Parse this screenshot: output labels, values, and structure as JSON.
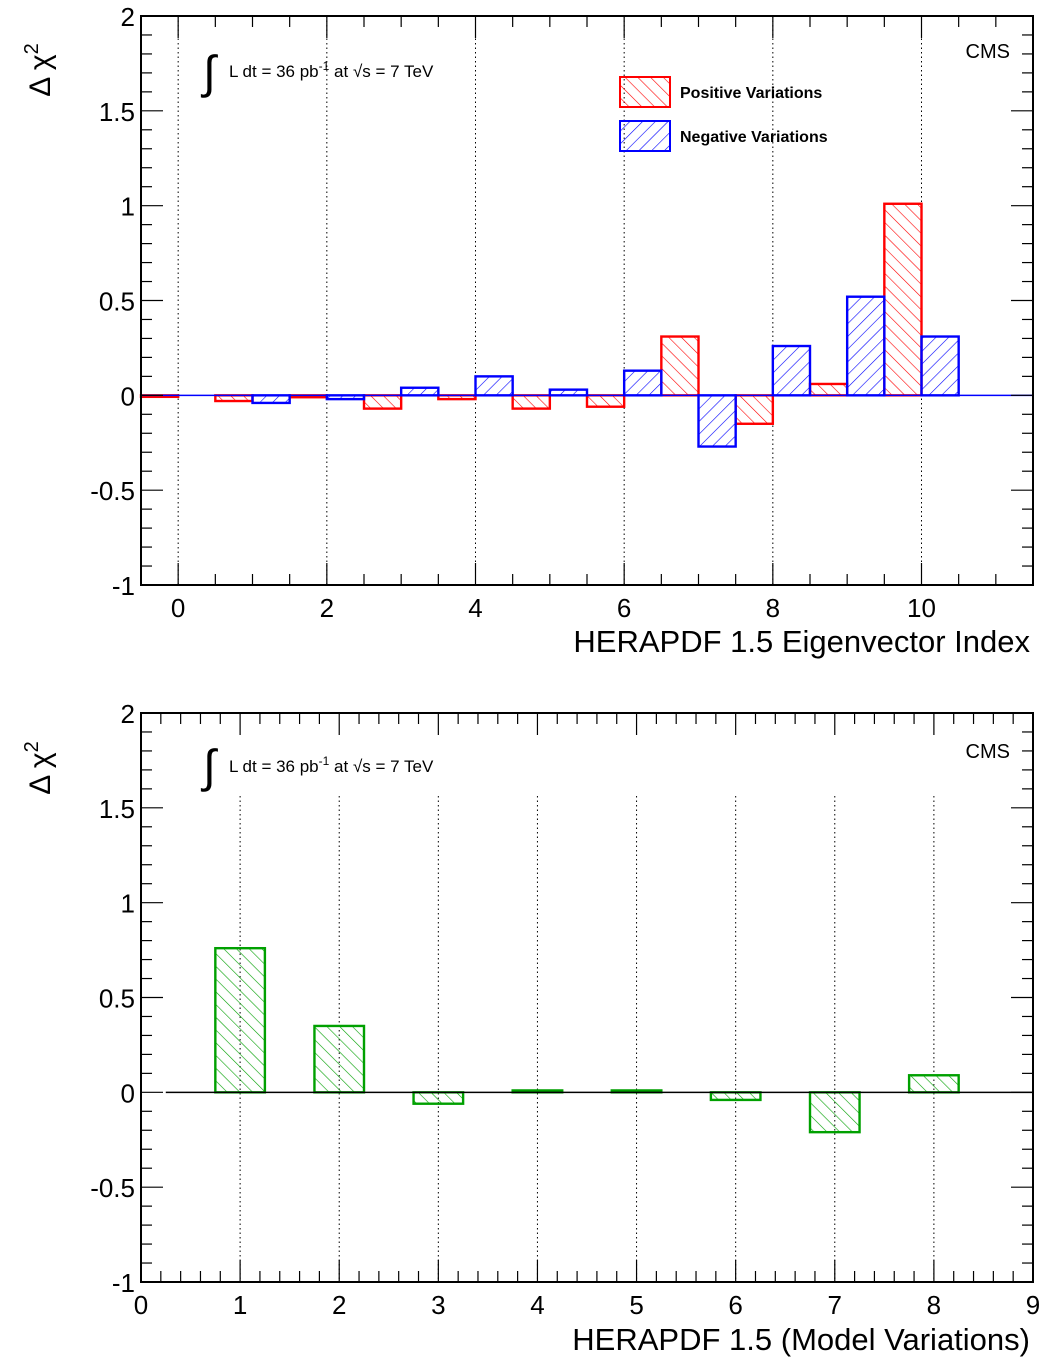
{
  "chart_data": [
    {
      "type": "bar",
      "ylabel": "Δ χ",
      "ylabel_sup": "2",
      "xlabel": "HERAPDF 1.5 Eigenvector Index",
      "xlim": [
        -0.5,
        11.5
      ],
      "ylim": [
        -1,
        2
      ],
      "x_ticks": [
        "0",
        "2",
        "4",
        "6",
        "8",
        "10"
      ],
      "y_ticks": [
        "-1",
        "-0.5",
        "0",
        "0.5",
        "1",
        "1.5",
        "2"
      ],
      "annotation": {
        "int_sym": "∫",
        "prefix": "L dt = 36 pb",
        "sup": "-1",
        "mid": " at ",
        "sqrt": "√s",
        "suffix": " = 7 TeV"
      },
      "experiment": "CMS",
      "gridlines_x": [
        0,
        2,
        4,
        6,
        8,
        10
      ],
      "legend": {
        "position": "top-right"
      },
      "series": [
        {
          "name": "Positive Variations",
          "color": "#ff0000",
          "x": [
            0,
            1,
            2,
            3,
            4,
            5,
            6,
            7,
            8,
            9,
            10
          ],
          "values": [
            0.0,
            -0.03,
            -0.01,
            -0.07,
            -0.02,
            -0.07,
            -0.06,
            0.31,
            -0.15,
            0.06,
            1.01
          ]
        },
        {
          "name": "Negative Variations",
          "color": "#0000ff",
          "x": [
            1,
            2,
            3,
            4,
            5,
            6,
            7,
            8,
            9,
            10
          ],
          "values": [
            -0.04,
            -0.02,
            0.04,
            0.1,
            0.03,
            0.13,
            -0.27,
            0.26,
            0.52,
            0.31
          ]
        }
      ]
    },
    {
      "type": "bar",
      "ylabel": "Δ χ",
      "ylabel_sup": "2",
      "xlabel": "HERAPDF 1.5 (Model Variations)",
      "xlim": [
        0,
        9
      ],
      "ylim": [
        -1,
        2
      ],
      "x_ticks": [
        "0",
        "1",
        "2",
        "3",
        "4",
        "5",
        "6",
        "7",
        "8",
        "9"
      ],
      "y_ticks": [
        "-1",
        "-0.5",
        "0",
        "0.5",
        "1",
        "1.5",
        "2"
      ],
      "annotation": {
        "int_sym": "∫",
        "prefix": "L dt = 36 pb",
        "sup": "-1",
        "mid": " at ",
        "sqrt": "√s",
        "suffix": " = 7 TeV"
      },
      "experiment": "CMS",
      "gridlines_x": [
        1,
        2,
        3,
        4,
        5,
        6,
        7,
        8
      ],
      "series": [
        {
          "color": "#00a000",
          "x": [
            1,
            2,
            3,
            4,
            5,
            6,
            7,
            8
          ],
          "values": [
            0.76,
            0.35,
            -0.06,
            0.01,
            0.01,
            -0.04,
            -0.21,
            0.09
          ]
        }
      ]
    }
  ]
}
